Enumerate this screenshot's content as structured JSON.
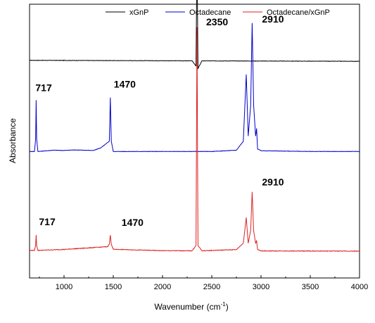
{
  "chart_data": {
    "type": "line",
    "title": "",
    "xlabel": "Wavenumber (cm",
    "xlabel_sup": "-1",
    "xlabel_close": ")",
    "ylabel": "Absorbance",
    "xlim": [
      650,
      4000
    ],
    "xticks": [
      1000,
      1500,
      2000,
      2500,
      3000,
      3500,
      4000
    ],
    "y_ticks_shown": false,
    "grid": false,
    "legend_position": "top",
    "series": [
      {
        "name": "xGnP",
        "color": "#000000",
        "baseline": 0.82,
        "drift": -0.004,
        "noise": 0.0016,
        "x": [
          650,
          1000,
          1500,
          2000,
          2300,
          2340,
          2350,
          2360,
          2400,
          2800,
          3000,
          3500,
          4000
        ],
        "y": [
          0.0,
          0.0,
          0.0,
          0.0,
          0.0,
          -0.02,
          0.43,
          -0.03,
          0.0,
          0.0,
          0.0,
          0.0,
          0.0
        ]
      },
      {
        "name": "Octadecane",
        "color": "#0000cc",
        "baseline": 0.465,
        "drift": 0.0,
        "noise": 0.0015,
        "x": [
          650,
          700,
          712,
          717,
          722,
          735,
          890,
          1000,
          1100,
          1300,
          1377,
          1460,
          1470,
          1480,
          1500,
          2000,
          2500,
          2750,
          2820,
          2850,
          2870,
          2895,
          2910,
          2925,
          2945,
          2955,
          2965,
          3000,
          3500,
          4000
        ],
        "y": [
          0.0,
          0.0,
          0.05,
          0.2,
          0.05,
          0.0,
          0.005,
          0.004,
          0.006,
          0.004,
          0.015,
          0.04,
          0.21,
          0.04,
          0.0,
          0.0,
          0.0,
          0.005,
          0.04,
          0.3,
          0.06,
          0.18,
          0.5,
          0.18,
          0.06,
          0.09,
          0.01,
          0.003,
          0.0,
          0.0
        ]
      },
      {
        "name": "Octadecane/xGnP",
        "color": "#dd2222",
        "baseline": 0.08,
        "drift": -0.003,
        "noise": 0.0025,
        "x": [
          650,
          700,
          712,
          717,
          722,
          735,
          1000,
          1440,
          1460,
          1470,
          1480,
          1500,
          2000,
          2300,
          2340,
          2350,
          2360,
          2400,
          2750,
          2820,
          2850,
          2870,
          2895,
          2910,
          2925,
          2945,
          2955,
          2965,
          3000,
          3500,
          4000
        ],
        "y": [
          0.0,
          0.0,
          0.02,
          0.06,
          0.02,
          0.0,
          0.004,
          0.015,
          0.025,
          0.06,
          0.025,
          0.005,
          0.0,
          0.0,
          0.02,
          0.87,
          0.02,
          0.0,
          0.005,
          0.03,
          0.13,
          0.03,
          0.08,
          0.23,
          0.08,
          0.03,
          0.04,
          0.005,
          0.0,
          0.0,
          0.0
        ]
      }
    ],
    "annotations": [
      {
        "text": "2350",
        "series": "xGnP",
        "x": 2350
      },
      {
        "text": "717",
        "series": "Octadecane",
        "x": 717
      },
      {
        "text": "1470",
        "series": "Octadecane",
        "x": 1470
      },
      {
        "text": "2910",
        "series": "Octadecane",
        "x": 2910
      },
      {
        "text": "2350",
        "series": "Octadecane/xGnP",
        "x": 2350
      },
      {
        "text": "717",
        "series": "Octadecane/xGnP",
        "x": 717
      },
      {
        "text": "1470",
        "series": "Octadecane/xGnP",
        "x": 1470
      },
      {
        "text": "2910",
        "series": "Octadecane/xGnP",
        "x": 2910
      }
    ]
  }
}
